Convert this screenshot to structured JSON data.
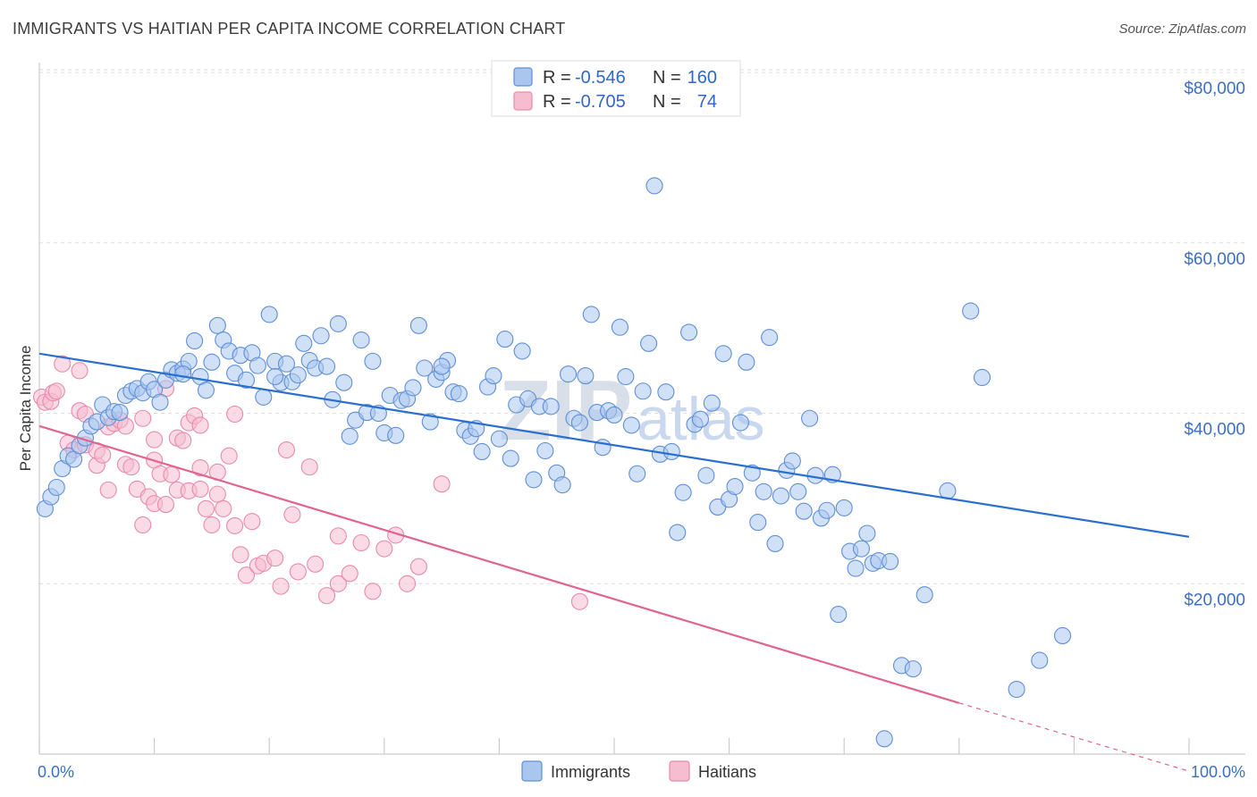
{
  "title": "IMMIGRANTS VS HAITIAN PER CAPITA INCOME CORRELATION CHART",
  "source": "Source: ZipAtlas.com",
  "watermark": {
    "zip": "ZIP",
    "atlas": "atlas"
  },
  "colors": {
    "immigrants_fill": "#a9c6ee",
    "immigrants_stroke": "#5f8fd6",
    "immigrants_line": "#2a6fd0",
    "haitians_fill": "#f6bcd0",
    "haitians_stroke": "#e88aac",
    "haitians_line": "#e0648f",
    "axis_text": "#3b6fc4",
    "grid": "#dddddd"
  },
  "legend": {
    "rows": [
      {
        "r_label": "R =",
        "r_value": "-0.546",
        "n_label": "N =",
        "n_value": "160"
      },
      {
        "r_label": "R =",
        "r_value": "-0.705",
        "n_label": "N =",
        "n_value": "74"
      }
    ]
  },
  "bottom_legend": [
    "Immigrants",
    "Haitians"
  ],
  "chart_data": {
    "type": "scatter",
    "title": "IMMIGRANTS VS HAITIAN PER CAPITA INCOME CORRELATION CHART",
    "xlabel": "",
    "ylabel": "Per Capita Income",
    "xlim": [
      0,
      100
    ],
    "ylim": [
      0,
      82000
    ],
    "x_tick_labels": [
      "0.0%",
      "100.0%"
    ],
    "y_ticks": [
      20000,
      40000,
      60000,
      80000
    ],
    "y_tick_labels": [
      "$20,000",
      "$40,000",
      "$60,000",
      "$80,000"
    ],
    "grid": true,
    "legend_position": "top-center",
    "series": [
      {
        "name": "Immigrants",
        "r": -0.546,
        "n": 160,
        "trend": {
          "x": [
            0,
            100
          ],
          "y": [
            47000,
            25500
          ]
        },
        "points": [
          [
            0.5,
            28800
          ],
          [
            1,
            30200
          ],
          [
            1.5,
            31300
          ],
          [
            2,
            33500
          ],
          [
            2.5,
            35000
          ],
          [
            3,
            34600
          ],
          [
            3.5,
            36200
          ],
          [
            4,
            37100
          ],
          [
            4.5,
            38500
          ],
          [
            5,
            39000
          ],
          [
            5.5,
            41000
          ],
          [
            6,
            39500
          ],
          [
            6.5,
            40200
          ],
          [
            7,
            40100
          ],
          [
            7.5,
            42100
          ],
          [
            8,
            42600
          ],
          [
            8.5,
            42900
          ],
          [
            9,
            42400
          ],
          [
            9.5,
            43700
          ],
          [
            10,
            42800
          ],
          [
            10.5,
            41300
          ],
          [
            11,
            43900
          ],
          [
            11.5,
            45100
          ],
          [
            12,
            44700
          ],
          [
            12.5,
            45200
          ],
          [
            13,
            46100
          ],
          [
            13.5,
            48500
          ],
          [
            14,
            44300
          ],
          [
            14.5,
            42700
          ],
          [
            15,
            46000
          ],
          [
            15.5,
            50300
          ],
          [
            16,
            48600
          ],
          [
            16.5,
            47300
          ],
          [
            17,
            44700
          ],
          [
            17.5,
            46800
          ],
          [
            18,
            43900
          ],
          [
            18.5,
            47100
          ],
          [
            19,
            45600
          ],
          [
            19.5,
            41900
          ],
          [
            20,
            51600
          ],
          [
            20.5,
            46100
          ],
          [
            21,
            43600
          ],
          [
            21.5,
            45800
          ],
          [
            22,
            43700
          ],
          [
            22.5,
            44500
          ],
          [
            23,
            48200
          ],
          [
            23.5,
            46200
          ],
          [
            24,
            45300
          ],
          [
            24.5,
            49100
          ],
          [
            25,
            45500
          ],
          [
            25.5,
            41600
          ],
          [
            26,
            50500
          ],
          [
            26.5,
            43600
          ],
          [
            27,
            37300
          ],
          [
            27.5,
            39200
          ],
          [
            28,
            48600
          ],
          [
            28.5,
            40100
          ],
          [
            29,
            46100
          ],
          [
            29.5,
            40000
          ],
          [
            30,
            37700
          ],
          [
            30.5,
            42100
          ],
          [
            31,
            37400
          ],
          [
            31.5,
            41500
          ],
          [
            32,
            41700
          ],
          [
            32.5,
            43000
          ],
          [
            33,
            50300
          ],
          [
            33.5,
            45300
          ],
          [
            34,
            39000
          ],
          [
            34.5,
            44000
          ],
          [
            35,
            44800
          ],
          [
            35.5,
            46200
          ],
          [
            36,
            42500
          ],
          [
            36.5,
            42300
          ],
          [
            37,
            38000
          ],
          [
            37.5,
            37300
          ],
          [
            38,
            38200
          ],
          [
            38.5,
            35500
          ],
          [
            39,
            43100
          ],
          [
            39.5,
            44400
          ],
          [
            40,
            37000
          ],
          [
            40.5,
            48700
          ],
          [
            41,
            34700
          ],
          [
            41.5,
            41000
          ],
          [
            42,
            47300
          ],
          [
            42.5,
            41700
          ],
          [
            43,
            32200
          ],
          [
            43.5,
            40800
          ],
          [
            44,
            35600
          ],
          [
            44.5,
            40800
          ],
          [
            45,
            33000
          ],
          [
            45.5,
            31600
          ],
          [
            46,
            44600
          ],
          [
            46.5,
            39400
          ],
          [
            47,
            38900
          ],
          [
            47.5,
            44400
          ],
          [
            48,
            51600
          ],
          [
            48.5,
            40100
          ],
          [
            49,
            36000
          ],
          [
            49.5,
            40300
          ],
          [
            50,
            39800
          ],
          [
            50.5,
            50100
          ],
          [
            51,
            44300
          ],
          [
            51.5,
            38600
          ],
          [
            52,
            32900
          ],
          [
            52.5,
            42600
          ],
          [
            53,
            48200
          ],
          [
            53.5,
            66700
          ],
          [
            54,
            35200
          ],
          [
            54.5,
            42500
          ],
          [
            55,
            35500
          ],
          [
            55.5,
            26000
          ],
          [
            56,
            30700
          ],
          [
            56.5,
            49500
          ],
          [
            57,
            38700
          ],
          [
            57.5,
            39300
          ],
          [
            58,
            32700
          ],
          [
            58.5,
            41200
          ],
          [
            59,
            29000
          ],
          [
            59.5,
            47000
          ],
          [
            60,
            29900
          ],
          [
            60.5,
            31400
          ],
          [
            61,
            38900
          ],
          [
            61.5,
            46000
          ],
          [
            62,
            33000
          ],
          [
            62.5,
            27200
          ],
          [
            63,
            30800
          ],
          [
            63.5,
            48900
          ],
          [
            64,
            24700
          ],
          [
            64.5,
            30300
          ],
          [
            65,
            33300
          ],
          [
            65.5,
            34400
          ],
          [
            66,
            30800
          ],
          [
            66.5,
            28500
          ],
          [
            67,
            39400
          ],
          [
            67.5,
            32700
          ],
          [
            68,
            27700
          ],
          [
            68.5,
            28600
          ],
          [
            69,
            32800
          ],
          [
            69.5,
            16400
          ],
          [
            70,
            28900
          ],
          [
            70.5,
            23800
          ],
          [
            71,
            21800
          ],
          [
            71.5,
            24100
          ],
          [
            72,
            25900
          ],
          [
            72.5,
            22400
          ],
          [
            73,
            22700
          ],
          [
            73.5,
            1800
          ],
          [
            74,
            22600
          ],
          [
            75,
            10400
          ],
          [
            76,
            10000
          ],
          [
            77,
            18700
          ],
          [
            79,
            30900
          ],
          [
            81,
            52000
          ],
          [
            82,
            44200
          ],
          [
            85,
            7600
          ],
          [
            87,
            11000
          ],
          [
            89,
            13900
          ],
          [
            12.5,
            44600
          ],
          [
            35,
            45500
          ],
          [
            20.5,
            44300
          ]
        ]
      },
      {
        "name": "Haitians",
        "r": -0.705,
        "n": 74,
        "trend": {
          "x": [
            0,
            80
          ],
          "y": [
            38500,
            6000
          ]
        },
        "trend_dashed": {
          "x": [
            80,
            100
          ],
          "y": [
            6000,
            -2000
          ]
        },
        "points": [
          [
            0.2,
            41900
          ],
          [
            0.5,
            41300
          ],
          [
            1,
            41400
          ],
          [
            1.2,
            42400
          ],
          [
            1.5,
            42600
          ],
          [
            2,
            45800
          ],
          [
            2.5,
            36500
          ],
          [
            3,
            35700
          ],
          [
            3.5,
            40300
          ],
          [
            3.5,
            45000
          ],
          [
            4,
            39900
          ],
          [
            4,
            36300
          ],
          [
            5,
            33900
          ],
          [
            5,
            35600
          ],
          [
            5.5,
            35100
          ],
          [
            6,
            38400
          ],
          [
            6,
            31000
          ],
          [
            6.5,
            38800
          ],
          [
            7,
            39200
          ],
          [
            7.5,
            34000
          ],
          [
            7.5,
            38500
          ],
          [
            8,
            33700
          ],
          [
            8.5,
            31100
          ],
          [
            9,
            26900
          ],
          [
            9,
            39400
          ],
          [
            9.5,
            30200
          ],
          [
            10,
            36900
          ],
          [
            10,
            29400
          ],
          [
            10,
            34500
          ],
          [
            10.5,
            32900
          ],
          [
            11,
            42900
          ],
          [
            11,
            29300
          ],
          [
            11.5,
            32800
          ],
          [
            12,
            37100
          ],
          [
            12,
            31000
          ],
          [
            12.5,
            36800
          ],
          [
            13,
            38900
          ],
          [
            13,
            30900
          ],
          [
            13.5,
            39700
          ],
          [
            14,
            33600
          ],
          [
            14,
            31100
          ],
          [
            14.5,
            28800
          ],
          [
            15,
            26900
          ],
          [
            15.5,
            30500
          ],
          [
            15.5,
            33100
          ],
          [
            16,
            28800
          ],
          [
            16.5,
            35000
          ],
          [
            17,
            26800
          ],
          [
            17,
            39900
          ],
          [
            17.5,
            23400
          ],
          [
            18,
            21000
          ],
          [
            18.5,
            27300
          ],
          [
            19,
            22100
          ],
          [
            19.5,
            22400
          ],
          [
            20.5,
            23000
          ],
          [
            21,
            19700
          ],
          [
            21.5,
            35700
          ],
          [
            22,
            28100
          ],
          [
            22.5,
            21400
          ],
          [
            23.5,
            33700
          ],
          [
            24,
            22300
          ],
          [
            25,
            18600
          ],
          [
            26,
            25600
          ],
          [
            26,
            20000
          ],
          [
            27,
            21200
          ],
          [
            28,
            24800
          ],
          [
            29,
            19100
          ],
          [
            30,
            24100
          ],
          [
            31,
            25700
          ],
          [
            32,
            20000
          ],
          [
            33,
            22000
          ],
          [
            35,
            31700
          ],
          [
            47,
            17900
          ],
          [
            14,
            38600
          ]
        ]
      }
    ]
  }
}
